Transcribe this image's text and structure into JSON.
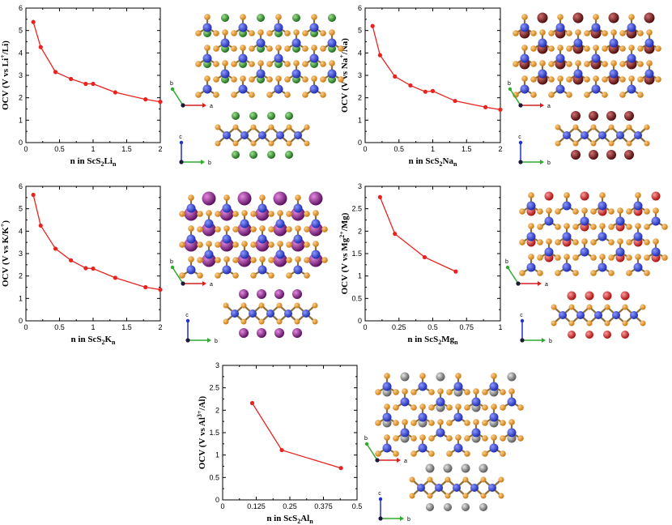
{
  "colors": {
    "line": "#e8231f",
    "sc_atom": "#2f3fd6",
    "s_atom": "#e0901e",
    "li_atom": "#2f8b2a",
    "na_atom": "#7a1a1a",
    "k_atom": "#8e2a8c",
    "mg_atom": "#d62a2a",
    "al_atom": "#8c8c8c",
    "bond": "#8a6f3a"
  },
  "chart_data": [
    {
      "id": "li",
      "type": "line",
      "ylabel": {
        "pre": "OCV (V vs Li",
        "sup": "+",
        "post": "/Li)"
      },
      "xlabel": {
        "pre": "n in ScS",
        "sub1": "2",
        "mid": "Li",
        "sub2": "n"
      },
      "xlim": [
        0,
        2
      ],
      "ylim": [
        0,
        6
      ],
      "xticks": [
        "0",
        "0.5",
        "1",
        "1.5",
        "2"
      ],
      "yticks": [
        "0",
        "1",
        "2",
        "3",
        "4",
        "5",
        "6"
      ],
      "x": [
        0.11,
        0.22,
        0.44,
        0.67,
        0.89,
        1.0,
        1.33,
        1.78,
        2.0
      ],
      "y": [
        5.38,
        4.26,
        3.15,
        2.84,
        2.62,
        2.62,
        2.24,
        1.93,
        1.82
      ],
      "ion_color": "li_atom"
    },
    {
      "id": "na",
      "type": "line",
      "ylabel": {
        "pre": "OCV (V vs Na",
        "sup": "+",
        "post": "/Na)"
      },
      "xlabel": {
        "pre": "n in ScS",
        "sub1": "2",
        "mid": "Na",
        "sub2": "n"
      },
      "xlim": [
        0,
        2
      ],
      "ylim": [
        0,
        6
      ],
      "xticks": [
        "0",
        "0.5",
        "1",
        "1.5",
        "2"
      ],
      "yticks": [
        "0",
        "1",
        "2",
        "3",
        "4",
        "5",
        "6"
      ],
      "x": [
        0.11,
        0.22,
        0.44,
        0.67,
        0.89,
        1.0,
        1.33,
        1.78,
        2.0
      ],
      "y": [
        5.2,
        3.9,
        2.95,
        2.55,
        2.27,
        2.3,
        1.86,
        1.58,
        1.47
      ],
      "ion_color": "na_atom"
    },
    {
      "id": "k",
      "type": "line",
      "ylabel": {
        "pre": "OCV (V vs K/K",
        "sup": "+",
        "post": ")"
      },
      "xlabel": {
        "pre": "n in ScS",
        "sub1": "2",
        "mid": "K",
        "sub2": "n"
      },
      "xlim": [
        0,
        2
      ],
      "ylim": [
        0,
        6
      ],
      "xticks": [
        "0",
        "0.5",
        "1",
        "1.5",
        "2"
      ],
      "yticks": [
        "0",
        "1",
        "2",
        "3",
        "4",
        "5",
        "6"
      ],
      "x": [
        0.11,
        0.22,
        0.44,
        0.67,
        0.89,
        1.0,
        1.33,
        1.78,
        2.0
      ],
      "y": [
        5.62,
        4.25,
        3.22,
        2.7,
        2.35,
        2.33,
        1.92,
        1.5,
        1.39
      ],
      "ion_color": "k_atom"
    },
    {
      "id": "mg",
      "type": "line",
      "ylabel": {
        "pre": "OCV (V vs Mg",
        "sup": "2+",
        "post": "/Mg)"
      },
      "xlabel": {
        "pre": "n in ScS",
        "sub1": "2",
        "mid": "Mg",
        "sub2": "n"
      },
      "xlim": [
        0,
        1
      ],
      "ylim": [
        0,
        3
      ],
      "xticks": [
        "0",
        "0.25",
        "0.5",
        "0.75",
        "1"
      ],
      "yticks": [
        "0",
        "0.5",
        "1",
        "1.5",
        "2",
        "2.5",
        "3"
      ],
      "x": [
        0.11,
        0.22,
        0.44,
        0.67
      ],
      "y": [
        2.76,
        1.94,
        1.42,
        1.1
      ],
      "ion_color": "mg_atom"
    },
    {
      "id": "al",
      "type": "line",
      "ylabel": {
        "pre": "OCV (V vs Al",
        "sup": "3+",
        "post": "/Al)"
      },
      "xlabel": {
        "pre": "n in ScS",
        "sub1": "2",
        "mid": "Al",
        "sub2": "n"
      },
      "xlim": [
        0,
        0.5
      ],
      "ylim": [
        0,
        3
      ],
      "xticks": [
        "0",
        "0.125",
        "0.25",
        "0.375",
        "0.5"
      ],
      "yticks": [
        "0",
        "0.5",
        "1",
        "1.5",
        "2",
        "2.5",
        "3"
      ],
      "x": [
        0.11,
        0.22,
        0.44
      ],
      "y": [
        2.16,
        1.11,
        0.71
      ],
      "ion_color": "al_atom"
    }
  ],
  "structures": [
    {
      "id": "li",
      "ion_color": "li_atom",
      "top_axes": {
        "a": "a",
        "b": "b"
      },
      "side_axes": {
        "c": "c",
        "b": "b"
      }
    },
    {
      "id": "na",
      "ion_color": "na_atom",
      "top_axes": {
        "a": "a",
        "b": "b"
      },
      "side_axes": {
        "c": "c",
        "b": "b"
      }
    },
    {
      "id": "k",
      "ion_color": "k_atom",
      "top_axes": {
        "a": "a",
        "b": "b"
      },
      "side_axes": {
        "c": "c",
        "b": "b"
      }
    },
    {
      "id": "mg",
      "ion_color": "mg_atom",
      "top_axes": {
        "a": "a",
        "b": "b"
      },
      "side_axes": {
        "c": "c",
        "b": "b"
      }
    },
    {
      "id": "al",
      "ion_color": "al_atom",
      "top_axes": {
        "a": "a",
        "b": "b"
      },
      "side_axes": {
        "c": "c",
        "b": "b"
      }
    }
  ]
}
